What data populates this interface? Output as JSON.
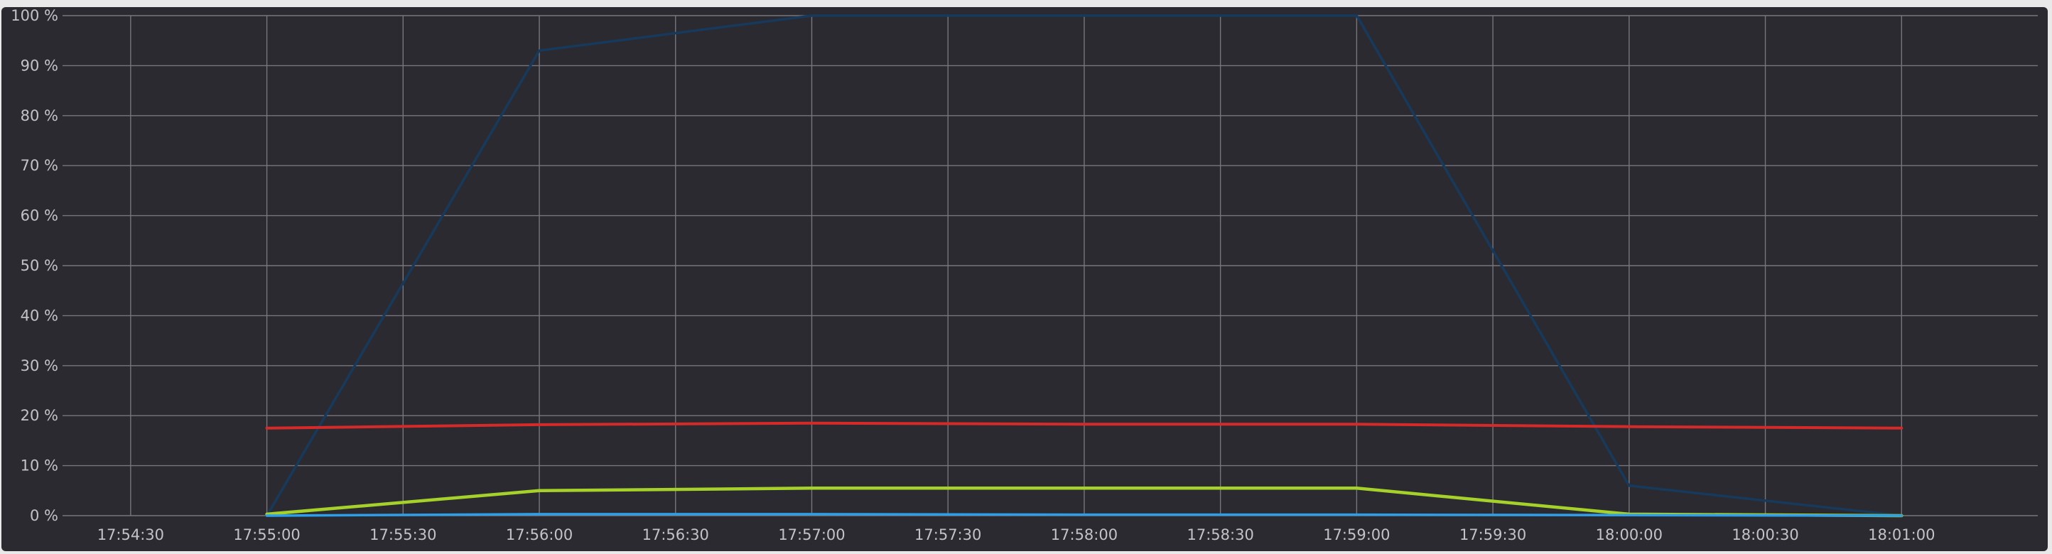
{
  "chart_data": {
    "type": "line",
    "title": "",
    "xlabel": "",
    "ylabel": "",
    "grid": true,
    "legend": "none",
    "x_tick_labels": [
      "17:54:30",
      "17:55:00",
      "17:55:30",
      "17:56:00",
      "17:56:30",
      "17:57:00",
      "17:57:30",
      "17:58:00",
      "17:58:30",
      "17:59:00",
      "17:59:30",
      "18:00:00",
      "18:00:30",
      "18:01:00"
    ],
    "y_tick_labels": [
      "0 %",
      "10 %",
      "20 %",
      "30 %",
      "40 %",
      "50 %",
      "60 %",
      "70 %",
      "80 %",
      "90 %",
      "100 %"
    ],
    "y_ticks": [
      0,
      10,
      20,
      30,
      40,
      50,
      60,
      70,
      80,
      90,
      100
    ],
    "xlim": [
      "17:54:15",
      "18:01:30"
    ],
    "ylim": [
      0,
      100
    ],
    "x": [
      "17:55:00",
      "17:56:00",
      "17:57:00",
      "17:58:00",
      "17:59:00",
      "18:00:00",
      "18:01:00"
    ],
    "series": [
      {
        "color": "#173a5c",
        "width": 3.5,
        "values": [
          0,
          93,
          100,
          100,
          100,
          6,
          0
        ]
      },
      {
        "color": "#d42a2a",
        "width": 4,
        "values": [
          17.5,
          18.2,
          18.5,
          18.3,
          18.3,
          17.8,
          17.5
        ]
      },
      {
        "color": "#a5d12a",
        "width": 4.5,
        "values": [
          0.3,
          5,
          5.5,
          5.5,
          5.5,
          0.3,
          0
        ]
      },
      {
        "color": "#2e9ee8",
        "width": 3.5,
        "values": [
          0,
          0.3,
          0.3,
          0.2,
          0.2,
          0.1,
          0
        ]
      }
    ]
  }
}
